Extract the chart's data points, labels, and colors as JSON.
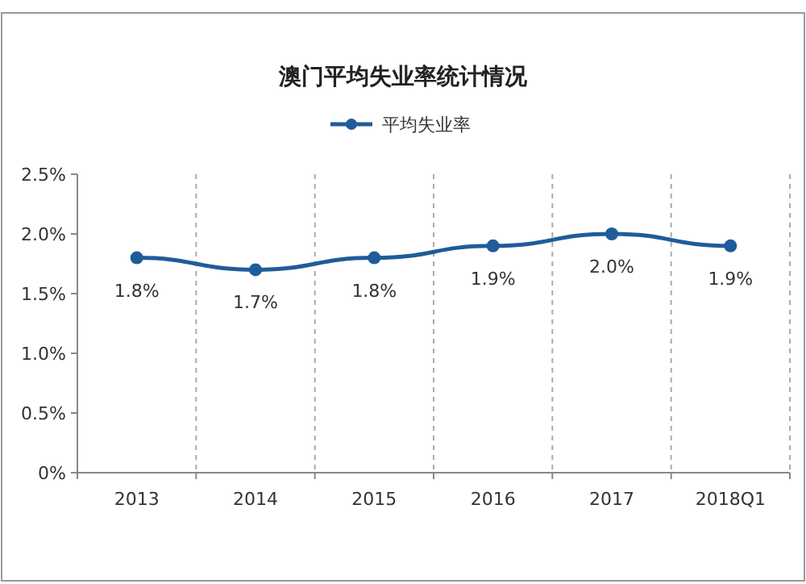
{
  "chart_data": {
    "type": "line",
    "title": "澳门平均失业率统计情况",
    "categories": [
      "2013",
      "2014",
      "2015",
      "2016",
      "2017",
      "2018Q1"
    ],
    "series": [
      {
        "name": "平均失业率",
        "color": "#1f5c99",
        "values": [
          1.8,
          1.7,
          1.8,
          1.9,
          2.0,
          1.9
        ],
        "value_labels": [
          "1.8%",
          "1.7%",
          "1.8%",
          "1.9%",
          "2.0%",
          "1.9%"
        ]
      }
    ],
    "ylim": [
      0,
      2.5
    ],
    "yticks": [
      {
        "value": 0,
        "label": "0%"
      },
      {
        "value": 0.5,
        "label": "0.5%"
      },
      {
        "value": 1,
        "label": "1.0%"
      },
      {
        "value": 1.5,
        "label": "1.5%"
      },
      {
        "value": 2,
        "label": "2.0%"
      },
      {
        "value": 2.5,
        "label": "2.5%"
      }
    ],
    "grid": "x",
    "legend": "top",
    "marker": "circle",
    "line_style": "solid"
  }
}
